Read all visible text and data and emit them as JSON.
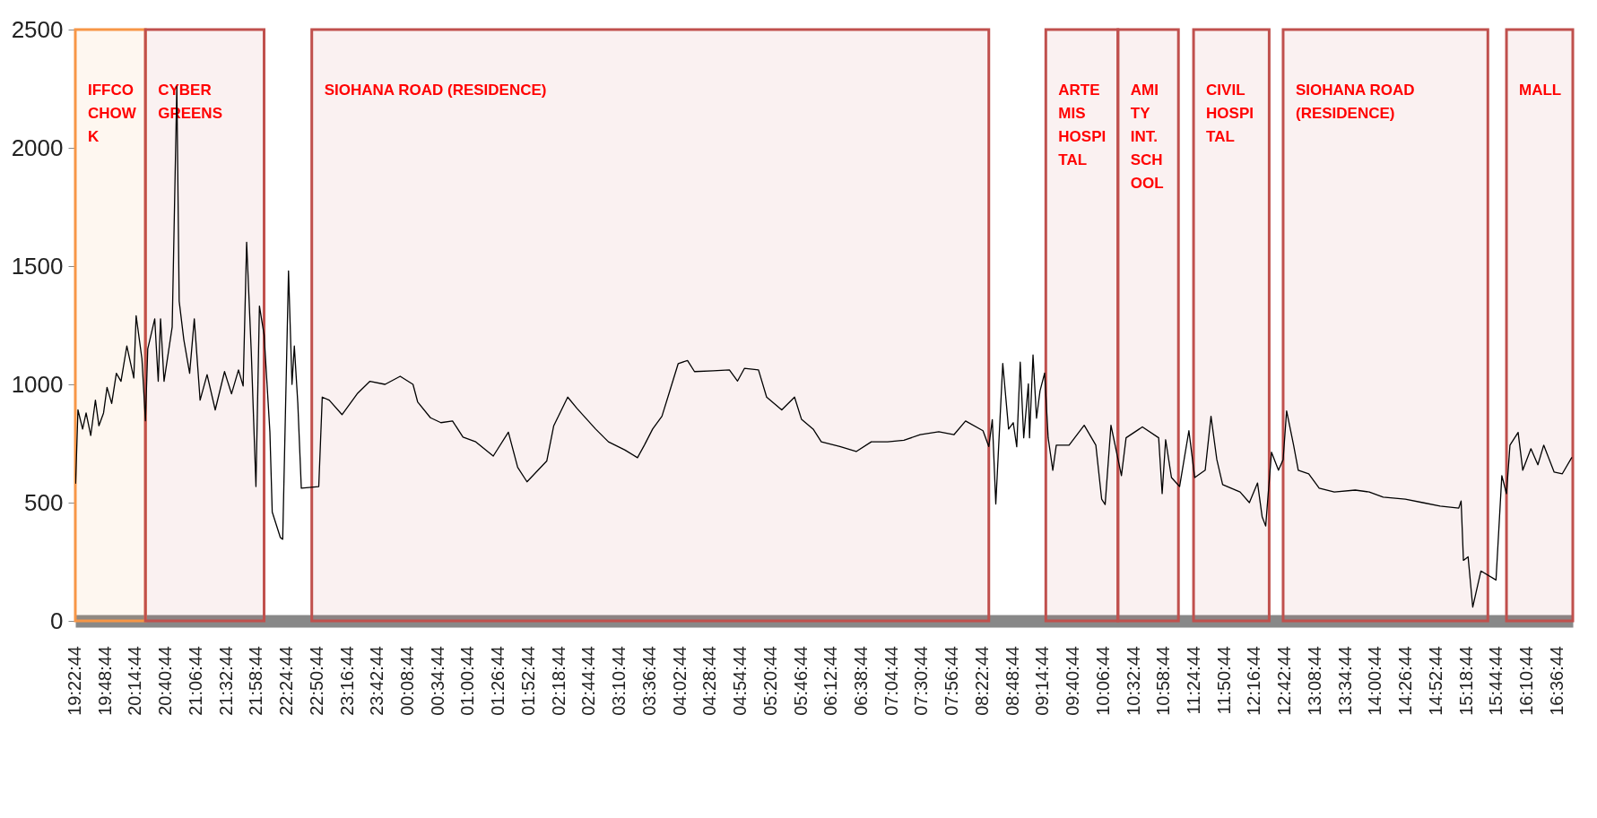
{
  "chart_data": {
    "type": "line",
    "x": [
      "2000-01-01T19:23",
      "2000-01-01T19:25",
      "2000-01-01T19:29",
      "2000-01-01T19:32",
      "2000-01-01T19:36",
      "2000-01-01T19:40",
      "2000-01-01T19:43",
      "2000-01-01T19:47",
      "2000-01-01T19:50",
      "2000-01-01T19:54",
      "2000-01-01T19:58",
      "2000-01-01T20:02",
      "2000-01-01T20:07",
      "2000-01-01T20:13",
      "2000-01-01T20:15",
      "2000-01-01T20:20",
      "2000-01-01T20:23",
      "2000-01-01T20:25",
      "2000-01-01T20:31",
      "2000-01-01T20:34",
      "2000-01-01T20:36",
      "2000-01-01T20:39",
      "2000-01-01T20:46",
      "2000-01-01T20:50",
      "2000-01-01T20:52",
      "2000-01-01T20:56",
      "2000-01-01T21:01",
      "2000-01-01T21:05",
      "2000-01-01T21:10",
      "2000-01-01T21:16",
      "2000-01-01T21:23",
      "2000-01-01T21:31",
      "2000-01-01T21:37",
      "2000-01-01T21:43",
      "2000-01-01T21:47",
      "2000-01-01T21:50",
      "2000-01-01T21:54",
      "2000-01-01T21:58",
      "2000-01-01T22:01",
      "2000-01-01T22:05",
      "2000-01-01T22:10",
      "2000-01-01T22:12",
      "2000-01-01T22:19",
      "2000-01-01T22:21",
      "2000-01-01T22:26",
      "2000-01-01T22:29",
      "2000-01-01T22:31",
      "2000-01-01T22:34",
      "2000-01-01T22:37",
      "2000-01-01T22:52",
      "2000-01-01T22:55",
      "2000-01-01T23:01",
      "2000-01-01T23:12",
      "2000-01-01T23:25",
      "2000-01-01T23:36",
      "2000-01-01T23:49",
      "2000-01-02T00:02",
      "2000-01-02T00:13",
      "2000-01-02T00:17",
      "2000-01-02T00:28",
      "2000-01-02T00:37",
      "2000-01-02T00:47",
      "2000-01-02T00:56",
      "2000-01-02T01:07",
      "2000-01-02T01:22",
      "2000-01-02T01:35",
      "2000-01-02T01:43",
      "2000-01-02T01:51",
      "2000-01-02T02:08",
      "2000-01-02T02:14",
      "2000-01-02T02:26",
      "2000-01-02T02:34",
      "2000-01-02T02:50",
      "2000-01-02T03:01",
      "2000-01-02T03:15",
      "2000-01-02T03:26",
      "2000-01-02T03:32",
      "2000-01-02T03:39",
      "2000-01-02T03:47",
      "2000-01-02T03:53",
      "2000-01-02T04:01",
      "2000-01-02T04:09",
      "2000-01-02T04:15",
      "2000-01-02T04:31",
      "2000-01-02T04:45",
      "2000-01-02T04:52",
      "2000-01-02T04:58",
      "2000-01-02T05:10",
      "2000-01-02T05:17",
      "2000-01-02T05:30",
      "2000-01-02T05:41",
      "2000-01-02T05:47",
      "2000-01-02T05:57",
      "2000-01-02T06:04",
      "2000-01-02T06:20",
      "2000-01-02T06:34",
      "2000-01-02T06:47",
      "2000-01-02T07:01",
      "2000-01-02T07:15",
      "2000-01-02T07:29",
      "2000-01-02T07:45",
      "2000-01-02T07:58",
      "2000-01-02T08:08",
      "2000-01-02T08:23",
      "2000-01-02T08:28",
      "2000-01-02T08:31",
      "2000-01-02T08:34",
      "2000-01-02T08:40",
      "2000-01-02T08:45",
      "2000-01-02T08:49",
      "2000-01-02T08:52",
      "2000-01-02T08:55",
      "2000-01-02T08:58",
      "2000-01-02T09:02",
      "2000-01-02T09:03",
      "2000-01-02T09:06",
      "2000-01-02T09:09",
      "2000-01-02T09:12",
      "2000-01-02T09:16",
      "2000-01-02T09:19",
      "2000-01-02T09:23",
      "2000-01-02T09:26",
      "2000-01-02T09:37",
      "2000-01-02T09:50",
      "2000-01-02T10:00",
      "2000-01-02T10:05",
      "2000-01-02T10:08",
      "2000-01-02T10:13",
      "2000-01-02T10:22",
      "2000-01-02T10:26",
      "2000-01-02T10:40",
      "2000-01-02T10:54",
      "2000-01-02T10:57",
      "2000-01-02T11:00",
      "2000-01-02T11:05",
      "2000-01-02T11:12",
      "2000-01-02T11:20",
      "2000-01-02T11:25",
      "2000-01-02T11:34",
      "2000-01-02T11:39",
      "2000-01-02T11:44",
      "2000-01-02T11:49",
      "2000-01-02T12:04",
      "2000-01-02T12:12",
      "2000-01-02T12:19",
      "2000-01-02T12:23",
      "2000-01-02T12:26",
      "2000-01-02T12:31",
      "2000-01-02T12:37",
      "2000-01-02T12:41",
      "2000-01-02T12:44",
      "2000-01-02T12:50",
      "2000-01-02T12:54",
      "2000-01-02T13:03",
      "2000-01-02T13:12",
      "2000-01-02T13:25",
      "2000-01-02T13:43",
      "2000-01-02T13:55",
      "2000-01-02T14:07",
      "2000-01-02T14:26",
      "2000-01-02T14:41",
      "2000-01-02T14:56",
      "2000-01-02T15:12",
      "2000-01-02T15:14",
      "2000-01-02T15:16",
      "2000-01-02T15:20",
      "2000-01-02T15:24",
      "2000-01-02T15:31",
      "2000-01-02T15:44",
      "2000-01-02T15:49",
      "2000-01-02T15:53",
      "2000-01-02T15:56",
      "2000-01-02T16:03",
      "2000-01-02T16:07",
      "2000-01-02T16:14",
      "2000-01-02T16:20",
      "2000-01-02T16:25",
      "2000-01-02T16:34",
      "2000-01-02T16:41",
      "2000-01-02T16:49"
    ],
    "series": [
      {
        "color": "#000000",
        "values": [
          582,
          892,
          811,
          879,
          784,
          933,
          825,
          879,
          987,
          919,
          1047,
          1013,
          1162,
          1027,
          1290,
          1108,
          846,
          1150,
          1277,
          1013,
          1277,
          1013,
          1243,
          2260,
          1352,
          1189,
          1047,
          1277,
          933,
          1041,
          892,
          1054,
          960,
          1061,
          993,
          1601,
          1135,
          568,
          1331,
          1210,
          798,
          460,
          352,
          345,
          1480,
          1000,
          1162,
          919,
          561,
          568,
          946,
          933,
          872,
          960,
          1013,
          1000,
          1034,
          1000,
          926,
          859,
          838,
          845,
          777,
          757,
          697,
          798,
          649,
          588,
          676,
          825,
          946,
          898,
          811,
          757,
          723,
          690,
          744,
          811,
          865,
          960,
          1088,
          1101,
          1054,
          1057,
          1061,
          1014,
          1068,
          1061,
          946,
          892,
          946,
          852,
          811,
          757,
          737,
          716,
          757,
          757,
          764,
          787,
          800,
          787,
          845,
          804,
          737,
          851,
          494,
          1088,
          811,
          838,
          736,
          1094,
          774,
          1002,
          774,
          1124,
          857,
          972,
          1048,
          774,
          637,
          743,
          743,
          827,
          743,
          515,
          492,
          827,
          614,
          774,
          820,
          774,
          538,
          766,
          606,
          568,
          804,
          606,
          637,
          865,
          682,
          576,
          545,
          500,
          583,
          439,
          401,
          713,
          637,
          682,
          888,
          743,
          637,
          622,
          561,
          545,
          553,
          545,
          523,
          515,
          500,
          485,
          477,
          507,
          256,
          271,
          58,
          211,
          173,
          614,
          538,
          743,
          797,
          637,
          728,
          660,
          743,
          629,
          622,
          690
        ]
      }
    ],
    "xlim": [
      "2000-01-01T19:22:44",
      "2000-01-02T16:50"
    ],
    "xticks": [
      {
        "value": "2000-01-01T19:22:44",
        "label": "19:22:44"
      },
      {
        "value": "2000-01-01T19:48:44",
        "label": "19:48:44"
      },
      {
        "value": "2000-01-01T20:14:44",
        "label": "20:14:44"
      },
      {
        "value": "2000-01-01T20:40:44",
        "label": "20:40:44"
      },
      {
        "value": "2000-01-01T21:06:44",
        "label": "21:06:44"
      },
      {
        "value": "2000-01-01T21:32:44",
        "label": "21:32:44"
      },
      {
        "value": "2000-01-01T21:58:44",
        "label": "21:58:44"
      },
      {
        "value": "2000-01-01T22:24:44",
        "label": "22:24:44"
      },
      {
        "value": "2000-01-01T22:50:44",
        "label": "22:50:44"
      },
      {
        "value": "2000-01-01T23:16:44",
        "label": "23:16:44"
      },
      {
        "value": "2000-01-01T23:42:44",
        "label": "23:42:44"
      },
      {
        "value": "2000-01-02T00:08:44",
        "label": "00:08:44"
      },
      {
        "value": "2000-01-02T00:34:44",
        "label": "00:34:44"
      },
      {
        "value": "2000-01-02T01:00:44",
        "label": "01:00:44"
      },
      {
        "value": "2000-01-02T01:26:44",
        "label": "01:26:44"
      },
      {
        "value": "2000-01-02T01:52:44",
        "label": "01:52:44"
      },
      {
        "value": "2000-01-02T02:18:44",
        "label": "02:18:44"
      },
      {
        "value": "2000-01-02T02:44:44",
        "label": "02:44:44"
      },
      {
        "value": "2000-01-02T03:10:44",
        "label": "03:10:44"
      },
      {
        "value": "2000-01-02T03:36:44",
        "label": "03:36:44"
      },
      {
        "value": "2000-01-02T04:02:44",
        "label": "04:02:44"
      },
      {
        "value": "2000-01-02T04:28:44",
        "label": "04:28:44"
      },
      {
        "value": "2000-01-02T04:54:44",
        "label": "04:54:44"
      },
      {
        "value": "2000-01-02T05:20:44",
        "label": "05:20:44"
      },
      {
        "value": "2000-01-02T05:46:44",
        "label": "05:46:44"
      },
      {
        "value": "2000-01-02T06:12:44",
        "label": "06:12:44"
      },
      {
        "value": "2000-01-02T06:38:44",
        "label": "06:38:44"
      },
      {
        "value": "2000-01-02T07:04:44",
        "label": "07:04:44"
      },
      {
        "value": "2000-01-02T07:30:44",
        "label": "07:30:44"
      },
      {
        "value": "2000-01-02T07:56:44",
        "label": "07:56:44"
      },
      {
        "value": "2000-01-02T08:22:44",
        "label": "08:22:44"
      },
      {
        "value": "2000-01-02T08:48:44",
        "label": "08:48:44"
      },
      {
        "value": "2000-01-02T09:14:44",
        "label": "09:14:44"
      },
      {
        "value": "2000-01-02T09:40:44",
        "label": "09:40:44"
      },
      {
        "value": "2000-01-02T10:06:44",
        "label": "10:06:44"
      },
      {
        "value": "2000-01-02T10:32:44",
        "label": "10:32:44"
      },
      {
        "value": "2000-01-02T10:58:44",
        "label": "10:58:44"
      },
      {
        "value": "2000-01-02T11:24:44",
        "label": "11:24:44"
      },
      {
        "value": "2000-01-02T11:50:44",
        "label": "11:50:44"
      },
      {
        "value": "2000-01-02T12:16:44",
        "label": "12:16:44"
      },
      {
        "value": "2000-01-02T12:42:44",
        "label": "12:42:44"
      },
      {
        "value": "2000-01-02T13:08:44",
        "label": "13:08:44"
      },
      {
        "value": "2000-01-02T13:34:44",
        "label": "13:34:44"
      },
      {
        "value": "2000-01-02T14:00:44",
        "label": "14:00:44"
      },
      {
        "value": "2000-01-02T14:26:44",
        "label": "14:26:44"
      },
      {
        "value": "2000-01-02T14:52:44",
        "label": "14:52:44"
      },
      {
        "value": "2000-01-02T15:18:44",
        "label": "15:18:44"
      },
      {
        "value": "2000-01-02T15:44:44",
        "label": "15:44:44"
      },
      {
        "value": "2000-01-02T16:10:44",
        "label": "16:10:44"
      },
      {
        "value": "2000-01-02T16:36:44",
        "label": "16:36:44"
      }
    ],
    "ylim": [
      0,
      2500
    ],
    "yticks": [
      0,
      500,
      1000,
      1500,
      2000,
      2500
    ],
    "grid": false,
    "marker": "none",
    "line_style": "solid",
    "bands": [
      {
        "axis": "x",
        "from": "2000-01-01T19:22:44",
        "to": "2000-01-01T20:23",
        "label": "IFFCO\nCHOW\nK",
        "color": "#f79646"
      },
      {
        "axis": "x",
        "from": "2000-01-01T20:23",
        "to": "2000-01-01T22:05",
        "label": "CYBER\nGREENS",
        "color": "#c0504d"
      },
      {
        "axis": "x",
        "from": "2000-01-01T22:46",
        "to": "2000-01-02T08:28",
        "label": "SIOHANA ROAD (RESIDENCE)",
        "color": "#c0504d"
      },
      {
        "axis": "x",
        "from": "2000-01-02T09:17",
        "to": "2000-01-02T10:19",
        "label": "ARTE\nMIS\nHOSPI\nTAL",
        "color": "#c0504d"
      },
      {
        "axis": "x",
        "from": "2000-01-02T10:19",
        "to": "2000-01-02T11:11",
        "label": "AMI\nTY\nINT.\nSCH\nOOL",
        "color": "#c0504d"
      },
      {
        "axis": "x",
        "from": "2000-01-02T11:24",
        "to": "2000-01-02T12:29",
        "label": "CIVIL\nHOSPI\nTAL",
        "color": "#c0504d"
      },
      {
        "axis": "x",
        "from": "2000-01-02T12:41",
        "to": "2000-01-02T15:37",
        "label": "SIOHANA ROAD\n(RESIDENCE)",
        "color": "#c0504d"
      },
      {
        "axis": "x",
        "from": "2000-01-02T15:53",
        "to": "2000-01-02T16:50",
        "label": "MALL",
        "color": "#c0504d"
      }
    ]
  }
}
